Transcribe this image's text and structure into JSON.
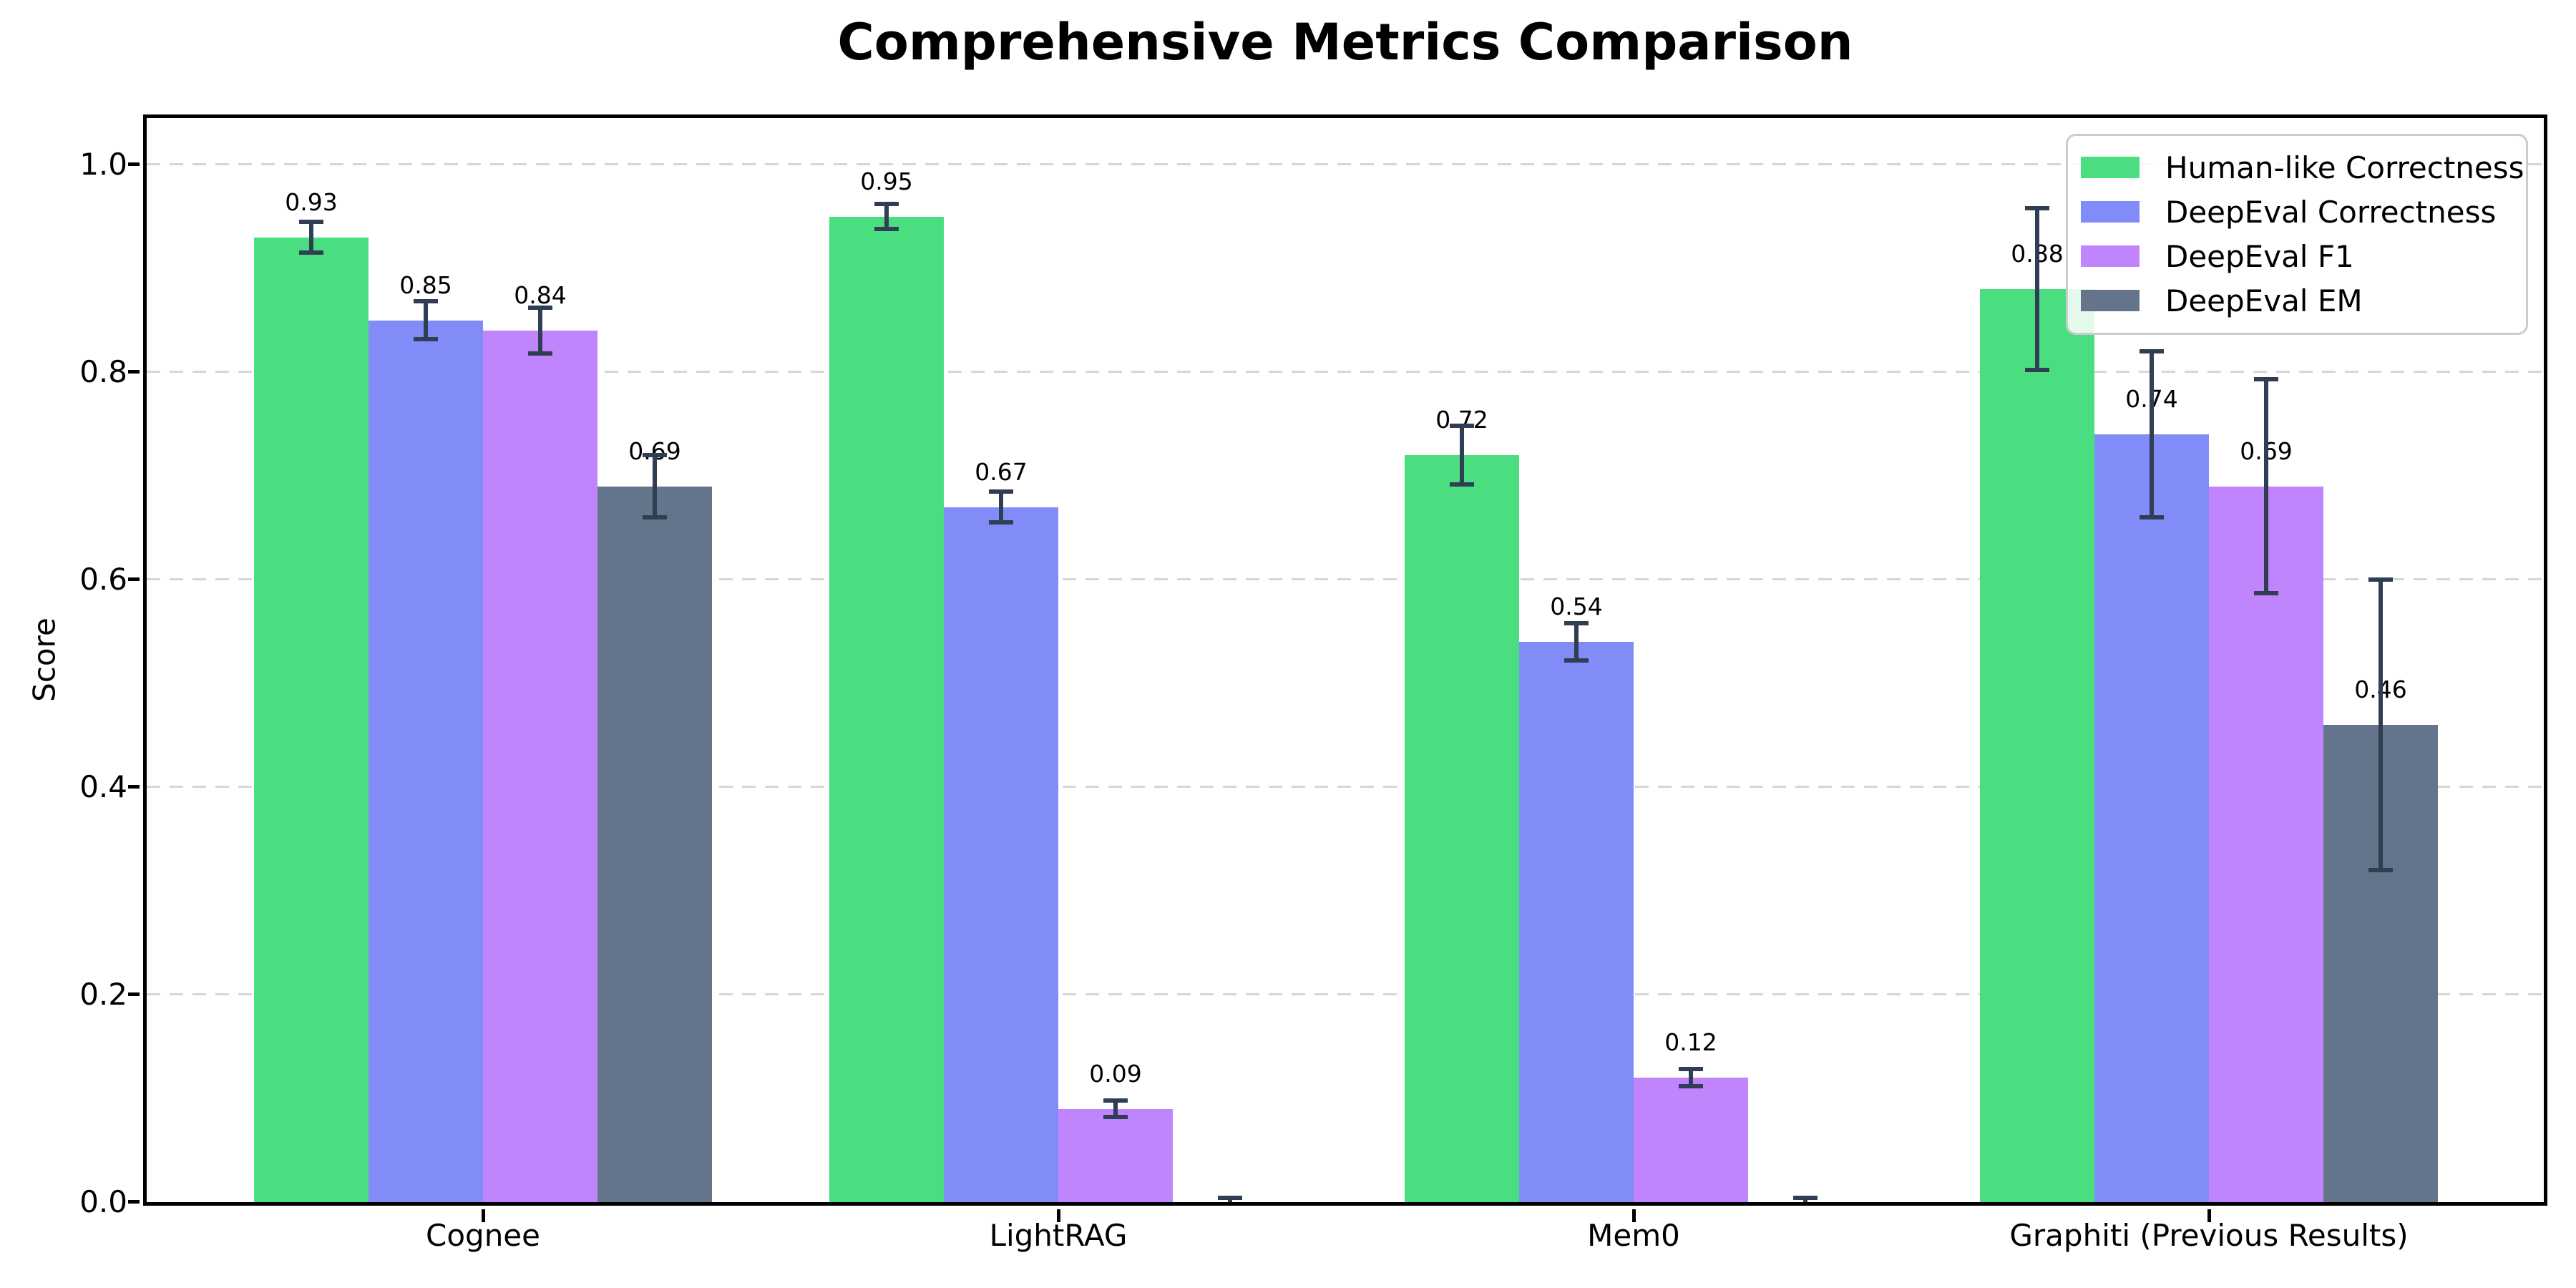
{
  "chart_data": {
    "type": "bar",
    "title": "Comprehensive Metrics Comparison",
    "xlabel": "",
    "ylabel": "Score",
    "ylim": [
      0,
      1.05
    ],
    "yticks": [
      0.0,
      0.2,
      0.4,
      0.6,
      0.8,
      1.0
    ],
    "ytick_labels": [
      "0.0",
      "0.2",
      "0.4",
      "0.6",
      "0.8",
      "1.0"
    ],
    "grid": "horizontal-dashed",
    "legend_position": "upper right",
    "background": "#ffffff",
    "axis_color": "#000000",
    "grid_color": "#d6d6d6",
    "error_bar_color": "#2f3e52",
    "legend_border_color": "#cccccc",
    "categories": [
      "Cognee",
      "LightRAG",
      "Mem0",
      "Graphiti (Previous Results)"
    ],
    "series": [
      {
        "name": "Human-like Correctness",
        "color": "#4ade80",
        "values": [
          0.93,
          0.95,
          0.72,
          0.88
        ],
        "errors": [
          0.015,
          0.012,
          0.028,
          0.078
        ],
        "labels": [
          "0.93",
          "0.95",
          "0.72",
          "0.88"
        ]
      },
      {
        "name": "DeepEval Correctness",
        "color": "#818cf8",
        "values": [
          0.85,
          0.67,
          0.54,
          0.74
        ],
        "errors": [
          0.018,
          0.015,
          0.018,
          0.08
        ],
        "labels": [
          "0.85",
          "0.67",
          "0.54",
          "0.74"
        ]
      },
      {
        "name": "DeepEval F1",
        "color": "#c084fc",
        "values": [
          0.84,
          0.09,
          0.12,
          0.69
        ],
        "errors": [
          0.022,
          0.008,
          0.008,
          0.103
        ],
        "labels": [
          "0.84",
          "0.09",
          "0.12",
          "0.69"
        ]
      },
      {
        "name": "DeepEval EM",
        "color": "#64748b",
        "values": [
          0.69,
          0.0,
          0.0,
          0.46
        ],
        "errors": [
          0.03,
          0.004,
          0.004,
          0.14
        ],
        "labels": [
          "0.69",
          "",
          "",
          "0.46"
        ]
      }
    ]
  }
}
